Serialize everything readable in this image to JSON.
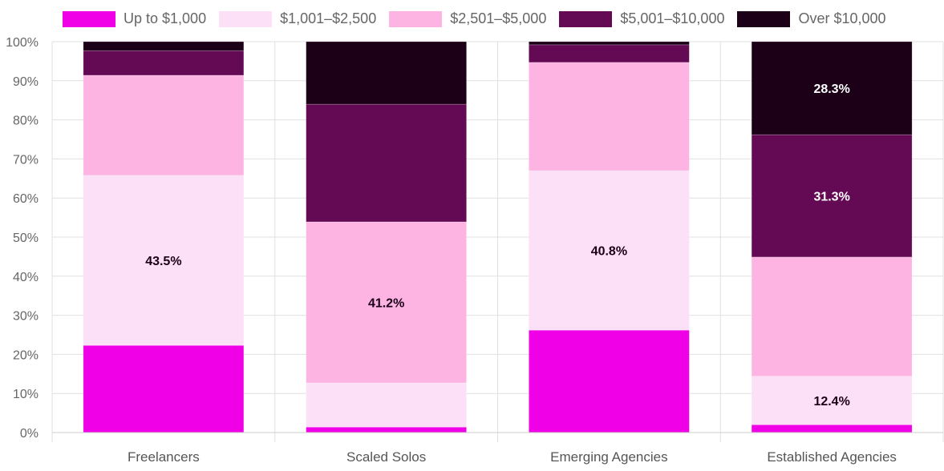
{
  "chart_data": {
    "type": "bar",
    "stacked": true,
    "categories": [
      "Freelancers",
      "Scaled Solos",
      "Emerging Agencies",
      "Established Agencies"
    ],
    "series": [
      {
        "name": "Up to $1,000",
        "color": "#f000e6",
        "values": [
          22.3,
          1.4,
          26.2,
          2.0
        ]
      },
      {
        "name": "$1,001–$2,500",
        "color": "#fbe0f8",
        "values": [
          43.5,
          11.3,
          40.8,
          12.4
        ]
      },
      {
        "name": "$2,501–$5,000",
        "color": "#fdb4e3",
        "values": [
          25.6,
          41.2,
          27.7,
          30.5
        ]
      },
      {
        "name": "$5,001–$10,000",
        "color": "#640a55",
        "values": [
          6.3,
          30.1,
          4.5,
          31.3
        ]
      },
      {
        "name": "Over $10,000",
        "color": "#1c0018",
        "values": [
          2.3,
          16.0,
          0.8,
          28.3
        ]
      }
    ],
    "data_labels": [
      {
        "category": 0,
        "series": 1,
        "text": "43.5%"
      },
      {
        "category": 1,
        "series": 2,
        "text": "41.2%"
      },
      {
        "category": 2,
        "series": 1,
        "text": "40.8%"
      },
      {
        "category": 3,
        "series": 1,
        "text": "12.4%"
      },
      {
        "category": 3,
        "series": 3,
        "text": "31.3%"
      },
      {
        "category": 3,
        "series": 4,
        "text": "28.3%"
      }
    ],
    "y_ticks": [
      "0%",
      "10%",
      "20%",
      "30%",
      "40%",
      "50%",
      "60%",
      "70%",
      "80%",
      "90%",
      "100%"
    ],
    "ylim": [
      0,
      100
    ],
    "grid": true,
    "legend": "top",
    "title": "",
    "xlabel": "",
    "ylabel": ""
  }
}
